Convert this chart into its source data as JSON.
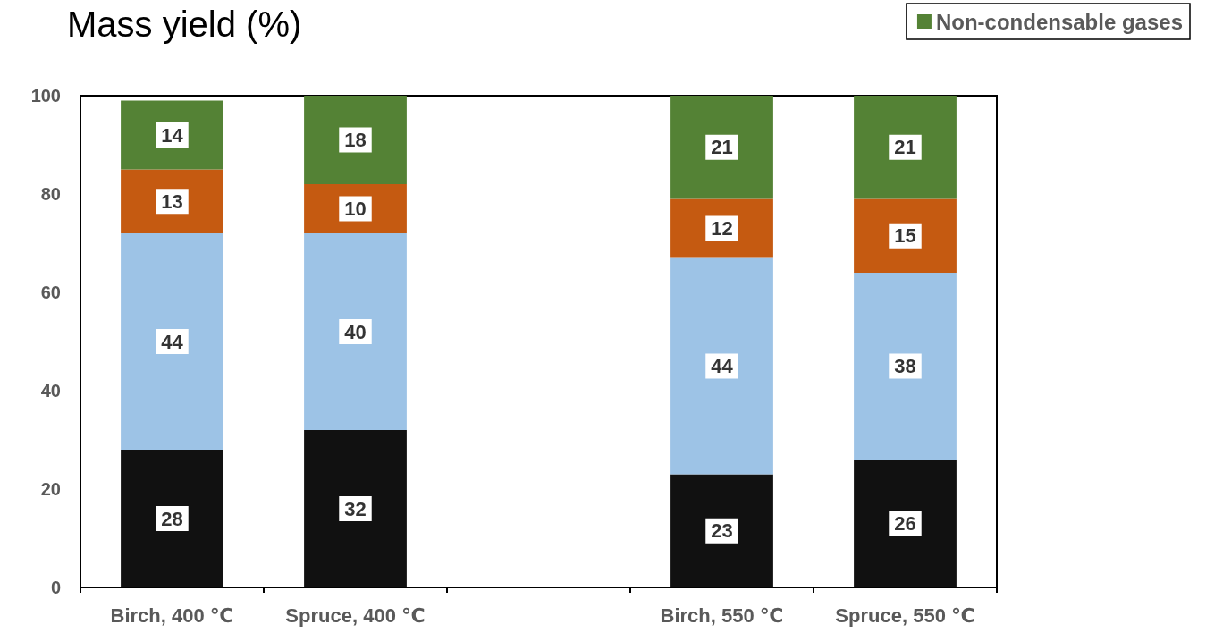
{
  "chart_data": {
    "type": "bar",
    "title": "Mass yield (%)",
    "stacked": true,
    "categories": [
      "Birch, 400 ℃",
      "Spruce, 400 ℃",
      null,
      "Birch, 550 ℃",
      "Spruce, 550 ℃"
    ],
    "series": [
      {
        "color": "#111111",
        "values": [
          28,
          32,
          null,
          23,
          26
        ]
      },
      {
        "color": "#9dc3e6",
        "values": [
          44,
          40,
          null,
          44,
          38
        ]
      },
      {
        "color": "#c55a11",
        "values": [
          13,
          10,
          null,
          12,
          15
        ]
      },
      {
        "name": "Non-condensable gases",
        "color": "#548235",
        "values": [
          14,
          18,
          null,
          21,
          21
        ]
      }
    ],
    "ylim": [
      0,
      100
    ],
    "yticks": [
      0,
      20,
      40,
      60,
      80,
      100
    ],
    "grid": false,
    "legend": "top right",
    "data_labels": true
  }
}
